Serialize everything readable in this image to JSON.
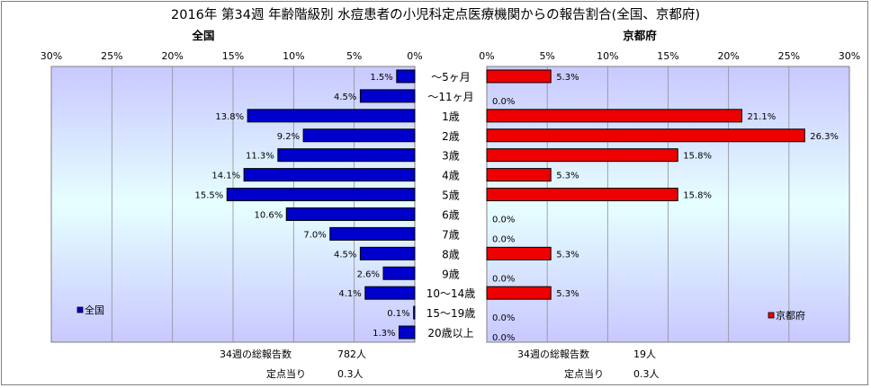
{
  "title": "2016年 第34週 年齢階級別 水痘患者の小児科定点医療機関からの報告割合(全国、京都府)",
  "age_groups": [
    "～5ヶ月",
    "～11ヶ月",
    "1歳",
    "2歳",
    "3歳",
    "4歳",
    "5歳",
    "6歳",
    "7歳",
    "8歳",
    "9歳",
    "10～14歳",
    "15～19歳",
    "20歳以上"
  ],
  "chart_data": [
    {
      "type": "bar",
      "orientation": "horizontal",
      "direction": "right-to-left",
      "title": "全国",
      "categories": [
        "～5ヶ月",
        "～11ヶ月",
        "1歳",
        "2歳",
        "3歳",
        "4歳",
        "5歳",
        "6歳",
        "7歳",
        "8歳",
        "9歳",
        "10～14歳",
        "15～19歳",
        "20歳以上"
      ],
      "series": [
        {
          "name": "全国",
          "color": "#0000cc",
          "values": [
            1.5,
            4.5,
            13.8,
            9.2,
            11.3,
            14.1,
            15.5,
            10.6,
            7.0,
            4.5,
            2.6,
            4.1,
            0.1,
            1.3
          ],
          "labels": [
            "1.5%",
            "4.5%",
            "13.8%",
            "9.2%",
            "11.3%",
            "14.1%",
            "15.5%",
            "10.6%",
            "7.0%",
            "4.5%",
            "2.6%",
            "4.1%",
            "0.1%",
            "1.3%"
          ]
        }
      ],
      "xlim": [
        0,
        30
      ],
      "ticks": [
        "0%",
        "5%",
        "10%",
        "15%",
        "20%",
        "25%",
        "30%"
      ],
      "legend_position": "bottom-left",
      "grid": true,
      "background": "#c8c8ff",
      "footnotes": [
        {
          "label": "34週の総報告数",
          "value": "782人"
        },
        {
          "label": "定点当り",
          "value": "0.3人"
        }
      ]
    },
    {
      "type": "bar",
      "orientation": "horizontal",
      "direction": "left-to-right",
      "title": "京都府",
      "categories": [
        "～5ヶ月",
        "～11ヶ月",
        "1歳",
        "2歳",
        "3歳",
        "4歳",
        "5歳",
        "6歳",
        "7歳",
        "8歳",
        "9歳",
        "10～14歳",
        "15～19歳",
        "20歳以上"
      ],
      "series": [
        {
          "name": "京都府",
          "color": "#ee0000",
          "values": [
            5.3,
            0.0,
            21.1,
            26.3,
            15.8,
            5.3,
            15.8,
            0.0,
            0.0,
            5.3,
            0.0,
            5.3,
            0.0,
            0.0
          ],
          "labels": [
            "5.3%",
            "0.0%",
            "21.1%",
            "26.3%",
            "15.8%",
            "5.3%",
            "15.8%",
            "0.0%",
            "0.0%",
            "5.3%",
            "0.0%",
            "5.3%",
            "0.0%",
            "0.0%"
          ]
        }
      ],
      "xlim": [
        0,
        30
      ],
      "ticks": [
        "0%",
        "5%",
        "10%",
        "15%",
        "20%",
        "25%",
        "30%"
      ],
      "legend_position": "bottom-right",
      "grid": true,
      "background": "#c8c8ff",
      "footnotes": [
        {
          "label": "34週の総報告数",
          "value": "19人"
        },
        {
          "label": "定点当り",
          "value": "0.3人"
        }
      ]
    }
  ]
}
